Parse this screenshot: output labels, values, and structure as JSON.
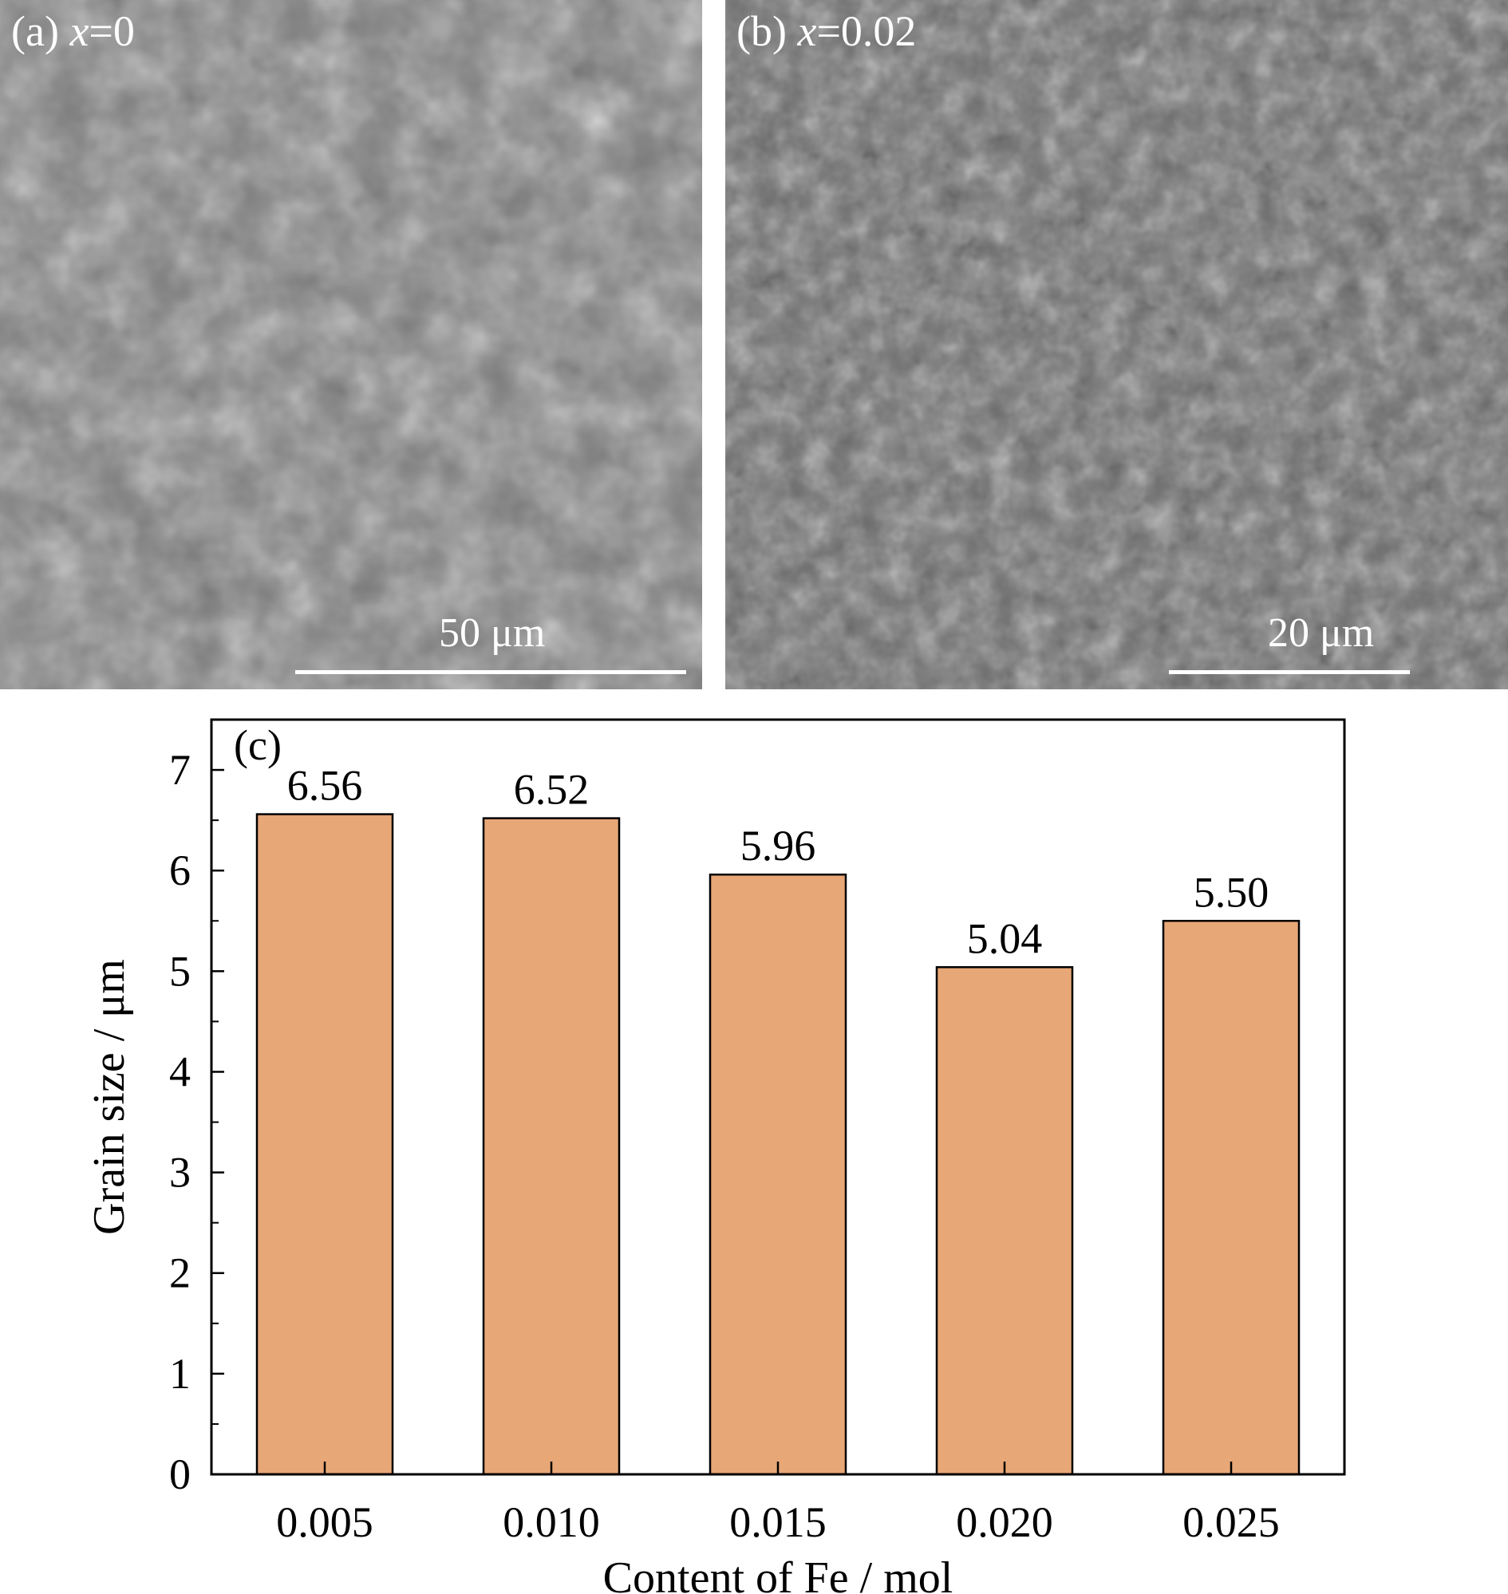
{
  "panels": [
    {
      "label_prefix": "(a) ",
      "var": "x",
      "label_suffix": "=0",
      "scale_bar": "50 μm"
    },
    {
      "label_prefix": "(b) ",
      "var": "x",
      "label_suffix": "=0.02",
      "scale_bar": "20 μm"
    }
  ],
  "colors": {
    "bar_fill": "#e8a777",
    "bar_stroke": "#000000",
    "sem_bg": "#7f7f7f"
  },
  "chart_data": {
    "type": "bar",
    "panel_label": "(c)",
    "categories": [
      "0.005",
      "0.010",
      "0.015",
      "0.020",
      "0.025"
    ],
    "values": [
      6.56,
      6.52,
      5.96,
      5.04,
      5.5
    ],
    "data_labels": [
      "6.56",
      "6.52",
      "5.96",
      "5.04",
      "5.50"
    ],
    "xlabel": "Content of Fe / mol",
    "ylabel": "Grain size / μm",
    "ylim": [
      0,
      7.5
    ],
    "yticks": [
      0,
      1,
      2,
      3,
      4,
      5,
      6,
      7
    ],
    "grid": false
  }
}
